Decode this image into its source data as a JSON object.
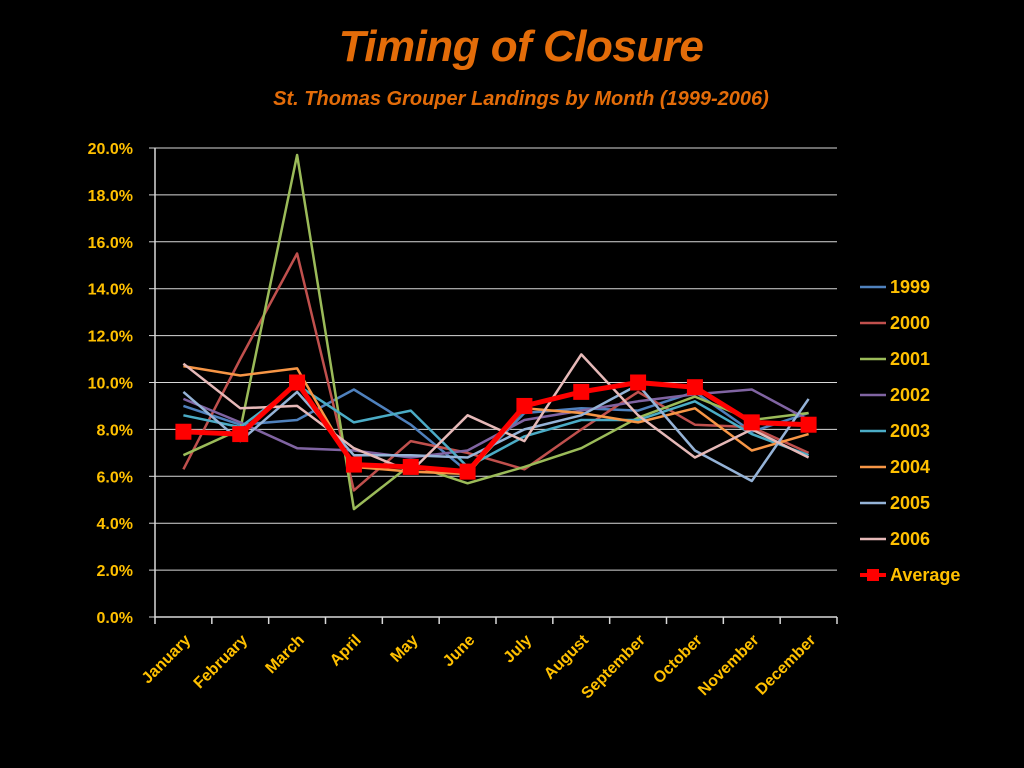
{
  "colors": {
    "title": "#E36C09",
    "text": "#FFC000",
    "axis": "#D9D9D9",
    "grid": "#D9D9D9"
  },
  "chart_data": {
    "type": "line",
    "title": "Timing of Closure",
    "subtitle": "St. Thomas Grouper Landings by Month (1999-2006)",
    "categories": [
      "January",
      "February",
      "March",
      "April",
      "May",
      "June",
      "July",
      "August",
      "September",
      "October",
      "November",
      "December"
    ],
    "ylim": [
      0,
      20
    ],
    "ytick_step": 2,
    "ytick_format": "percent_1dp",
    "grid": true,
    "legend_position": "right",
    "series": [
      {
        "name": "1999",
        "color": "#4F81BD",
        "width": 2.5,
        "marker": "none",
        "values": [
          9.0,
          8.2,
          8.4,
          9.7,
          8.2,
          6.2,
          8.7,
          8.9,
          8.8,
          9.6,
          7.9,
          8.7
        ]
      },
      {
        "name": "2000",
        "color": "#C0504D",
        "width": 2.5,
        "marker": "none",
        "values": [
          6.3,
          11.0,
          15.5,
          5.4,
          7.5,
          7.0,
          6.3,
          8.0,
          9.6,
          8.2,
          8.1,
          7.0
        ]
      },
      {
        "name": "2001",
        "color": "#9BBB59",
        "width": 2.5,
        "marker": "none",
        "values": [
          6.9,
          8.0,
          19.7,
          4.6,
          6.5,
          5.7,
          6.4,
          7.2,
          8.5,
          9.4,
          8.4,
          8.7
        ]
      },
      {
        "name": "2002",
        "color": "#8064A2",
        "width": 2.5,
        "marker": "none",
        "values": [
          9.3,
          8.3,
          7.2,
          7.1,
          6.8,
          7.1,
          8.4,
          8.8,
          9.2,
          9.5,
          9.7,
          8.4
        ]
      },
      {
        "name": "2003",
        "color": "#4BACC6",
        "width": 2.5,
        "marker": "none",
        "values": [
          8.6,
          8.1,
          9.9,
          8.3,
          8.8,
          6.4,
          7.7,
          8.4,
          8.4,
          9.2,
          7.8,
          6.9
        ]
      },
      {
        "name": "2004",
        "color": "#F79646",
        "width": 2.5,
        "marker": "none",
        "values": [
          10.7,
          10.3,
          10.6,
          6.4,
          6.2,
          6.1,
          8.9,
          8.7,
          8.3,
          8.9,
          7.1,
          7.8
        ]
      },
      {
        "name": "2005",
        "color": "#95B3D7",
        "width": 2.5,
        "marker": "none",
        "values": [
          9.6,
          7.5,
          9.6,
          6.9,
          6.9,
          6.8,
          8.0,
          8.6,
          9.9,
          7.1,
          5.8,
          9.3
        ]
      },
      {
        "name": "2006",
        "color": "#E6B9B8",
        "width": 2.5,
        "marker": "none",
        "values": [
          10.8,
          8.9,
          9.0,
          7.2,
          6.2,
          8.6,
          7.5,
          11.2,
          8.6,
          6.8,
          8.0,
          6.8
        ]
      },
      {
        "name": "Average",
        "color": "#FF0000",
        "width": 5,
        "marker": "square",
        "values": [
          7.9,
          7.8,
          10.0,
          6.5,
          6.4,
          6.2,
          9.0,
          9.6,
          10.0,
          9.8,
          8.3,
          8.2
        ]
      }
    ]
  }
}
